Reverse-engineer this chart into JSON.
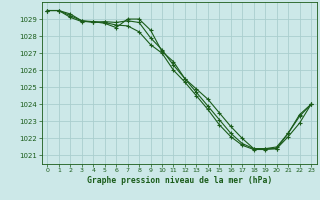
{
  "bg_color": "#cce8e8",
  "grid_color": "#aacece",
  "line_color": "#1a5c1a",
  "marker_color": "#1a5c1a",
  "xlabel": "Graphe pression niveau de la mer (hPa)",
  "xlabel_color": "#1a5c1a",
  "xlim": [
    -0.5,
    23.5
  ],
  "ylim": [
    1020.5,
    1030.0
  ],
  "yticks": [
    1021,
    1022,
    1023,
    1024,
    1025,
    1026,
    1027,
    1028,
    1029
  ],
  "xticks": [
    0,
    1,
    2,
    3,
    4,
    5,
    6,
    7,
    8,
    9,
    10,
    11,
    12,
    13,
    14,
    15,
    16,
    17,
    18,
    19,
    20,
    21,
    22,
    23
  ],
  "series": [
    [
      1029.5,
      1029.5,
      1029.3,
      1028.9,
      1028.85,
      1028.75,
      1028.5,
      1029.0,
      1029.0,
      1028.35,
      1027.1,
      1026.5,
      1025.5,
      1024.9,
      1024.3,
      1023.5,
      1022.7,
      1022.0,
      1021.4,
      1021.4,
      1021.4,
      1022.3,
      1023.4,
      1024.0
    ],
    [
      1029.5,
      1029.5,
      1029.2,
      1028.9,
      1028.8,
      1028.85,
      1028.8,
      1028.9,
      1028.8,
      1027.9,
      1027.2,
      1026.3,
      1025.5,
      1024.7,
      1023.9,
      1023.1,
      1022.3,
      1021.7,
      1021.4,
      1021.4,
      1021.5,
      1022.3,
      1023.3,
      1024.0
    ],
    [
      1029.5,
      1029.5,
      1029.1,
      1028.85,
      1028.85,
      1028.8,
      1028.65,
      1028.6,
      1028.25,
      1027.5,
      1027.0,
      1026.0,
      1025.3,
      1024.5,
      1023.7,
      1022.8,
      1022.1,
      1021.6,
      1021.35,
      1021.35,
      1021.4,
      1022.1,
      1022.9,
      1024.0
    ]
  ]
}
